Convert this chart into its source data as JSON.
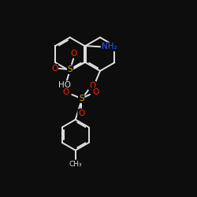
{
  "background_color": "#0d0d0d",
  "bond_color": "#e8e8e8",
  "line_color": "#e0e0e0",
  "atom_colors": {
    "O": "#ff2200",
    "S": "#ccaa00",
    "N": "#3355ff",
    "C": "#e0e0e0",
    "H": "#e0e0e0"
  },
  "bond_width": 1.4,
  "font_size_atoms": 7.5,
  "font_size_small": 6.0,
  "xlim": [
    0,
    10
  ],
  "ylim": [
    0,
    10
  ]
}
